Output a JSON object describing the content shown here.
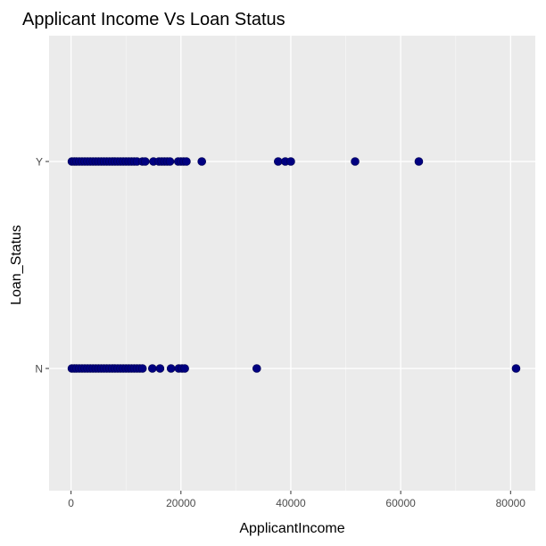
{
  "chart_data": {
    "type": "scatter",
    "title": "Applicant Income Vs Loan Status",
    "xlabel": "ApplicantIncome",
    "ylabel": "Loan_Status",
    "xlim": [
      -4000,
      84500
    ],
    "x_ticks": [
      0,
      20000,
      40000,
      60000,
      80000
    ],
    "x_minor_ticks": [
      10000,
      30000,
      50000,
      70000
    ],
    "categories": [
      "N",
      "Y"
    ],
    "grid": true,
    "point_color": "#000080",
    "panel_color": "#EBEBEB",
    "series": [
      {
        "category": "Y",
        "x": [
          150,
          600,
          1000,
          1500,
          2000,
          2500,
          3000,
          3500,
          4000,
          4500,
          5000,
          5500,
          6000,
          6500,
          7000,
          7500,
          8000,
          8500,
          9000,
          9500,
          10000,
          10500,
          11000,
          11500,
          12000,
          13000,
          13500,
          15000,
          16000,
          16500,
          17000,
          17500,
          18000,
          19500,
          20000,
          20500,
          21000,
          23800,
          37700,
          39000,
          40000,
          51700,
          63300
        ]
      },
      {
        "category": "N",
        "x": [
          150,
          600,
          1000,
          1500,
          2000,
          2500,
          3000,
          3500,
          4000,
          4500,
          5000,
          5500,
          6000,
          6500,
          7000,
          7500,
          8000,
          8500,
          9000,
          9500,
          10000,
          10500,
          11000,
          11500,
          12000,
          12500,
          13000,
          14800,
          16200,
          18200,
          19600,
          20200,
          20700,
          33800,
          81000
        ]
      }
    ]
  }
}
